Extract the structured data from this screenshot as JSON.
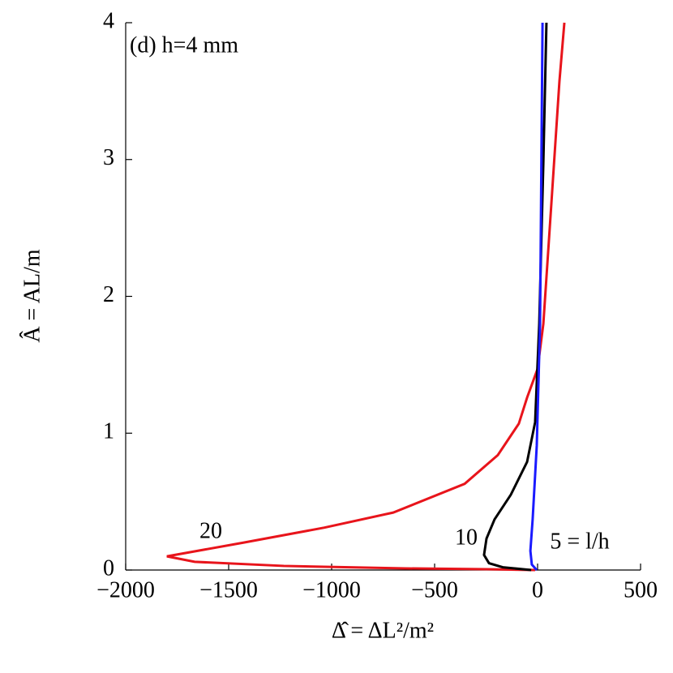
{
  "chart_data": {
    "type": "line",
    "title": "(d) h=4 mm",
    "x_label": "Δ̂ = ΔL²/m²",
    "y_label": "Â = AL/m",
    "xlim": [
      -2000,
      500
    ],
    "ylim": [
      0,
      4
    ],
    "xticks": [
      {
        "value": -2000,
        "label": "−2000"
      },
      {
        "value": -1500,
        "label": "−1500"
      },
      {
        "value": -1000,
        "label": "−1000"
      },
      {
        "value": -500,
        "label": "−500"
      },
      0,
      500
    ],
    "yticks": [
      0,
      1,
      2,
      3,
      4
    ],
    "grid": false,
    "series": [
      {
        "name": "20",
        "color": "#e8141b",
        "x": [
          130,
          106,
          67,
          28,
          0,
          -51,
          -91,
          -193,
          -354,
          -701,
          -1035,
          -1429,
          -1800,
          -1665,
          -1232,
          -642,
          -248,
          -12
        ],
        "values": [
          4,
          3.57,
          2.68,
          1.8,
          1.47,
          1.26,
          1.07,
          0.84,
          0.63,
          0.42,
          0.31,
          0.2,
          0.1,
          0.06,
          0.03,
          0.012,
          0.006,
          0
        ]
      },
      {
        "name": "10",
        "color": "#000000",
        "x": [
          43,
          28,
          8,
          -12,
          -51,
          -130,
          -209,
          -248,
          -260,
          -236,
          -169,
          -31
        ],
        "values": [
          4,
          2.98,
          1.8,
          1.08,
          0.79,
          0.55,
          0.37,
          0.23,
          0.11,
          0.05,
          0.02,
          0
        ]
      },
      {
        "name": "5 = l/h",
        "color": "#1a1aff",
        "x": [
          24,
          12,
          -4,
          -24,
          -35,
          -28,
          -4
        ],
        "values": [
          4,
          1.8,
          0.91,
          0.37,
          0.14,
          0.04,
          0
        ]
      }
    ]
  }
}
